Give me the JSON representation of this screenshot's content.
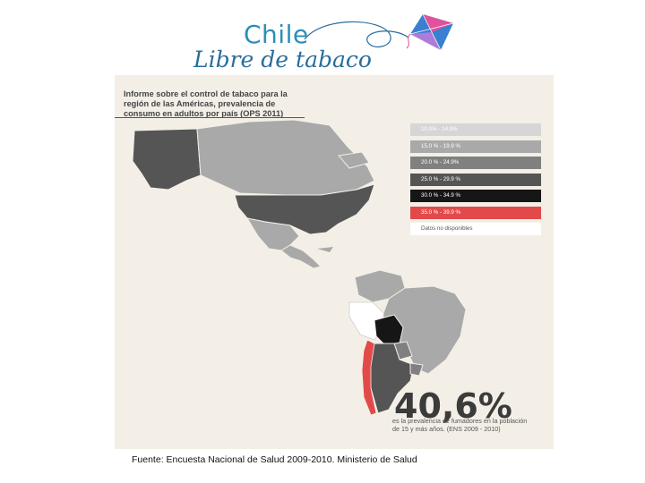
{
  "logo": {
    "line1": "Chile",
    "line2": "Libre de tabaco",
    "colors": {
      "text_blue": "#2b8fb8",
      "kite_pink": "#e0529a",
      "kite_blue": "#3a7fd0"
    }
  },
  "infographic": {
    "title": "Informe sobre el control de tabaco para la región de las Américas, prevalencia de consumo en adultos por país (OPS 2011)",
    "legend": [
      {
        "label": "10.0% - 14.9%",
        "color": "#d6d6d6",
        "text_color": "#ffffff"
      },
      {
        "label": "15.0 % - 19.9 %",
        "color": "#a9a9a9",
        "text_color": "#ffffff"
      },
      {
        "label": "20.0 % - 24.9%",
        "color": "#808080",
        "text_color": "#ffffff"
      },
      {
        "label": "25.0 % - 29.9 %",
        "color": "#555555",
        "text_color": "#ffffff"
      },
      {
        "label": "30.0 % - 34.9 %",
        "color": "#161616",
        "text_color": "#ffffff"
      },
      {
        "label": "35.0 % - 39.9 %",
        "color": "#e24a4a",
        "text_color": "#ffffff"
      },
      {
        "label": "Datos no disponibles",
        "color": "#ffffff",
        "text_color": "#555555"
      }
    ],
    "stat_value": "40,6%",
    "stat_description": "es la prevalencia de fumadores en la población de 15 y más años. (ENS 2009 - 2010)"
  },
  "map_regions": [
    {
      "name": "Alaska",
      "color": "#555555"
    },
    {
      "name": "Canada",
      "color": "#a9a9a9"
    },
    {
      "name": "United States",
      "color": "#555555"
    },
    {
      "name": "Mexico",
      "color": "#a9a9a9"
    },
    {
      "name": "Central America",
      "color": "#a9a9a9"
    },
    {
      "name": "Colombia and Venezuela",
      "color": "#a9a9a9"
    },
    {
      "name": "Peru",
      "color": "#ffffff"
    },
    {
      "name": "Brazil",
      "color": "#a9a9a9"
    },
    {
      "name": "Bolivia",
      "color": "#161616"
    },
    {
      "name": "Paraguay",
      "color": "#808080"
    },
    {
      "name": "Argentina",
      "color": "#555555"
    },
    {
      "name": "Uruguay",
      "color": "#808080"
    },
    {
      "name": "Chile",
      "color": "#e24a4a"
    }
  ],
  "source": "Fuente: Encuesta Nacional de Salud 2009-2010. Ministerio de Salud"
}
